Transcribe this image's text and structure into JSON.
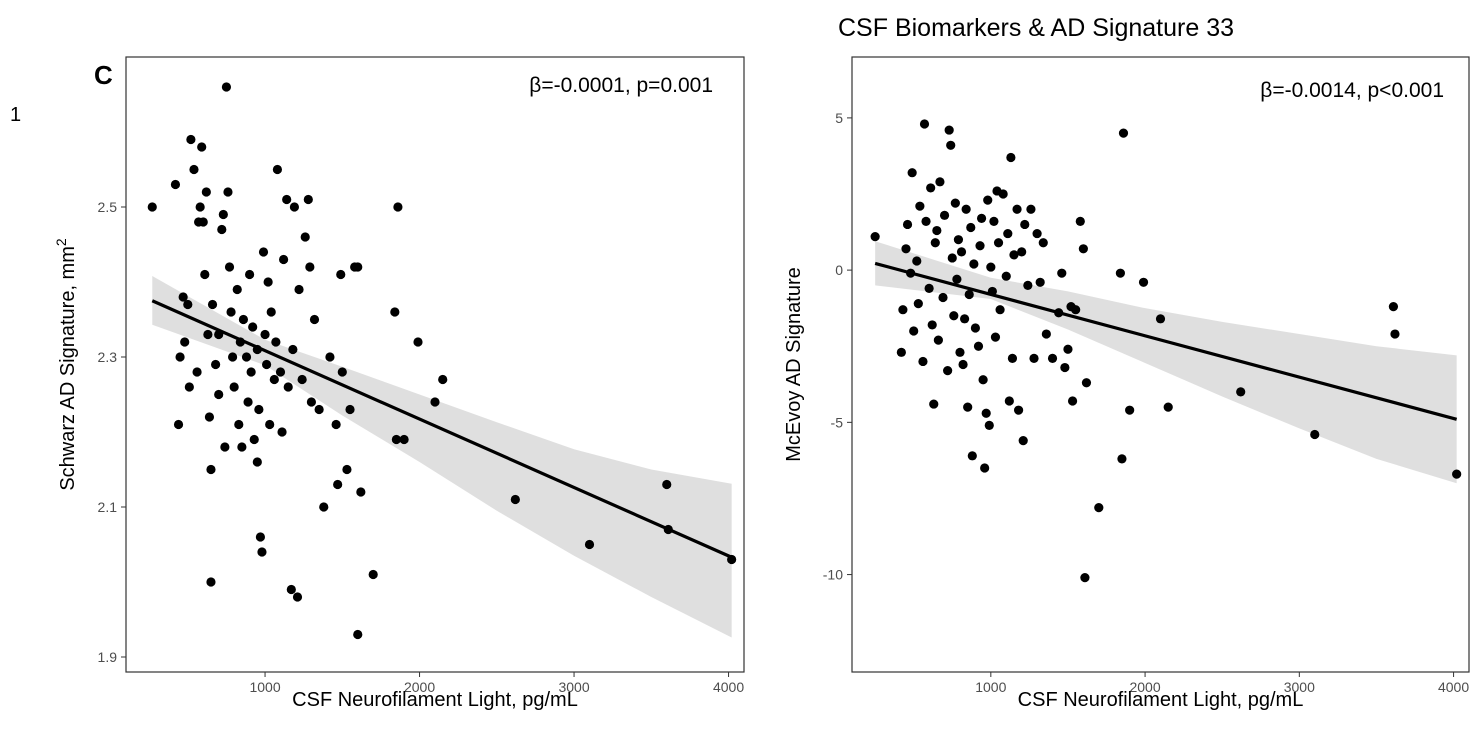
{
  "page": {
    "number": "1",
    "title": "CSF Biomarkers & AD Signature 33"
  },
  "chart_data": [
    {
      "type": "scatter",
      "panel_label": "C",
      "annotation": "β=-0.0001, p=0.001",
      "xlabel": "CSF Neurofilament Light, pg/mL",
      "ylabel": "Schwarz AD Signature, mm",
      "ylabel_sup": "2",
      "xlim": [
        100,
        4100
      ],
      "ylim": [
        1.88,
        2.7
      ],
      "xticks": [
        1000,
        2000,
        3000,
        4000
      ],
      "yticks": [
        1.9,
        2.1,
        2.3,
        2.5
      ],
      "ytick_labels": [
        "1.9",
        "2.1",
        "2.3",
        "2.5"
      ],
      "grid": false,
      "points": [
        [
          270,
          2.5
        ],
        [
          420,
          2.53
        ],
        [
          440,
          2.21
        ],
        [
          450,
          2.3
        ],
        [
          470,
          2.38
        ],
        [
          480,
          2.32
        ],
        [
          500,
          2.37
        ],
        [
          510,
          2.26
        ],
        [
          520,
          2.59
        ],
        [
          540,
          2.55
        ],
        [
          560,
          2.28
        ],
        [
          570,
          2.48
        ],
        [
          580,
          2.5
        ],
        [
          590,
          2.58
        ],
        [
          600,
          2.48
        ],
        [
          610,
          2.41
        ],
        [
          620,
          2.52
        ],
        [
          630,
          2.33
        ],
        [
          640,
          2.22
        ],
        [
          650,
          2.15
        ],
        [
          650,
          2.0
        ],
        [
          660,
          2.37
        ],
        [
          680,
          2.29
        ],
        [
          700,
          2.33
        ],
        [
          700,
          2.25
        ],
        [
          720,
          2.47
        ],
        [
          730,
          2.49
        ],
        [
          740,
          2.18
        ],
        [
          750,
          2.66
        ],
        [
          760,
          2.52
        ],
        [
          770,
          2.42
        ],
        [
          780,
          2.36
        ],
        [
          790,
          2.3
        ],
        [
          800,
          2.26
        ],
        [
          820,
          2.39
        ],
        [
          830,
          2.21
        ],
        [
          840,
          2.32
        ],
        [
          850,
          2.18
        ],
        [
          860,
          2.35
        ],
        [
          880,
          2.3
        ],
        [
          890,
          2.24
        ],
        [
          900,
          2.41
        ],
        [
          910,
          2.28
        ],
        [
          920,
          2.34
        ],
        [
          930,
          2.19
        ],
        [
          950,
          2.31
        ],
        [
          950,
          2.16
        ],
        [
          960,
          2.23
        ],
        [
          970,
          2.06
        ],
        [
          980,
          2.04
        ],
        [
          990,
          2.44
        ],
        [
          1000,
          2.33
        ],
        [
          1010,
          2.29
        ],
        [
          1020,
          2.4
        ],
        [
          1030,
          2.21
        ],
        [
          1040,
          2.36
        ],
        [
          1060,
          2.27
        ],
        [
          1070,
          2.32
        ],
        [
          1080,
          2.55
        ],
        [
          1100,
          2.28
        ],
        [
          1110,
          2.2
        ],
        [
          1120,
          2.43
        ],
        [
          1140,
          2.51
        ],
        [
          1150,
          2.26
        ],
        [
          1170,
          1.99
        ],
        [
          1180,
          2.31
        ],
        [
          1190,
          2.5
        ],
        [
          1210,
          1.98
        ],
        [
          1220,
          2.39
        ],
        [
          1240,
          2.27
        ],
        [
          1260,
          2.46
        ],
        [
          1280,
          2.51
        ],
        [
          1290,
          2.42
        ],
        [
          1300,
          2.24
        ],
        [
          1320,
          2.35
        ],
        [
          1350,
          2.23
        ],
        [
          1380,
          2.1
        ],
        [
          1420,
          2.3
        ],
        [
          1460,
          2.21
        ],
        [
          1470,
          2.13
        ],
        [
          1490,
          2.41
        ],
        [
          1500,
          2.28
        ],
        [
          1530,
          2.15
        ],
        [
          1550,
          2.23
        ],
        [
          1580,
          2.42
        ],
        [
          1600,
          2.42
        ],
        [
          1600,
          1.93
        ],
        [
          1620,
          2.12
        ],
        [
          1700,
          2.01
        ],
        [
          1840,
          2.36
        ],
        [
          1850,
          2.19
        ],
        [
          1860,
          2.5
        ],
        [
          1900,
          2.19
        ],
        [
          1990,
          2.32
        ],
        [
          2100,
          2.24
        ],
        [
          2150,
          2.27
        ],
        [
          2620,
          2.11
        ],
        [
          3100,
          2.05
        ],
        [
          3600,
          2.13
        ],
        [
          3610,
          2.07
        ],
        [
          4020,
          2.03
        ]
      ],
      "fit": {
        "x": [
          270,
          4020
        ],
        "y": [
          2.375,
          2.033
        ]
      },
      "ci_lower": [
        [
          270,
          2.343
        ],
        [
          1000,
          2.289
        ],
        [
          1500,
          2.222
        ],
        [
          2000,
          2.16
        ],
        [
          2500,
          2.095
        ],
        [
          3000,
          2.035
        ],
        [
          3500,
          1.98
        ],
        [
          4020,
          1.926
        ]
      ],
      "ci_upper": [
        [
          270,
          2.408
        ],
        [
          1000,
          2.323
        ],
        [
          1500,
          2.287
        ],
        [
          2000,
          2.25
        ],
        [
          2500,
          2.213
        ],
        [
          3000,
          2.177
        ],
        [
          3500,
          2.15
        ],
        [
          4020,
          2.131
        ]
      ]
    },
    {
      "type": "scatter",
      "annotation": "β=-0.0014, p<0.001",
      "xlabel": "CSF Neurofilament Light, pg/mL",
      "ylabel": "McEvoy AD Signature",
      "xlim": [
        100,
        4100
      ],
      "ylim": [
        -13.2,
        7.0
      ],
      "xticks": [
        1000,
        2000,
        3000,
        4000
      ],
      "yticks": [
        -10,
        -5,
        0,
        5
      ],
      "ytick_labels": [
        "-10",
        "-5",
        "0",
        "5"
      ],
      "grid": false,
      "points": [
        [
          250,
          1.1
        ],
        [
          420,
          -2.7
        ],
        [
          430,
          -1.3
        ],
        [
          450,
          0.7
        ],
        [
          460,
          1.5
        ],
        [
          480,
          -0.1
        ],
        [
          490,
          3.2
        ],
        [
          500,
          -2.0
        ],
        [
          520,
          0.3
        ],
        [
          530,
          -1.1
        ],
        [
          540,
          2.1
        ],
        [
          560,
          -3.0
        ],
        [
          570,
          4.8
        ],
        [
          580,
          1.6
        ],
        [
          600,
          -0.6
        ],
        [
          610,
          2.7
        ],
        [
          620,
          -1.8
        ],
        [
          630,
          -4.4
        ],
        [
          640,
          0.9
        ],
        [
          650,
          1.3
        ],
        [
          660,
          -2.3
        ],
        [
          670,
          2.9
        ],
        [
          690,
          -0.9
        ],
        [
          700,
          1.8
        ],
        [
          720,
          -3.3
        ],
        [
          730,
          4.6
        ],
        [
          740,
          4.1
        ],
        [
          750,
          0.4
        ],
        [
          760,
          -1.5
        ],
        [
          770,
          2.2
        ],
        [
          780,
          -0.3
        ],
        [
          790,
          1.0
        ],
        [
          800,
          -2.7
        ],
        [
          810,
          0.6
        ],
        [
          820,
          -3.1
        ],
        [
          830,
          -1.6
        ],
        [
          840,
          2.0
        ],
        [
          850,
          -4.5
        ],
        [
          860,
          -0.8
        ],
        [
          870,
          1.4
        ],
        [
          880,
          -6.1
        ],
        [
          890,
          0.2
        ],
        [
          900,
          -1.9
        ],
        [
          920,
          -2.5
        ],
        [
          930,
          0.8
        ],
        [
          940,
          1.7
        ],
        [
          950,
          -3.6
        ],
        [
          960,
          -6.5
        ],
        [
          970,
          -4.7
        ],
        [
          980,
          2.3
        ],
        [
          990,
          -5.1
        ],
        [
          1000,
          0.1
        ],
        [
          1010,
          -0.7
        ],
        [
          1020,
          1.6
        ],
        [
          1030,
          -2.2
        ],
        [
          1040,
          2.6
        ],
        [
          1050,
          0.9
        ],
        [
          1060,
          -1.3
        ],
        [
          1080,
          2.5
        ],
        [
          1100,
          -0.2
        ],
        [
          1110,
          1.2
        ],
        [
          1120,
          -4.3
        ],
        [
          1130,
          3.7
        ],
        [
          1140,
          -2.9
        ],
        [
          1150,
          0.5
        ],
        [
          1170,
          2.0
        ],
        [
          1180,
          -4.6
        ],
        [
          1200,
          0.6
        ],
        [
          1210,
          -5.6
        ],
        [
          1220,
          1.5
        ],
        [
          1240,
          -0.5
        ],
        [
          1260,
          2.0
        ],
        [
          1280,
          -2.9
        ],
        [
          1300,
          1.2
        ],
        [
          1320,
          -0.4
        ],
        [
          1340,
          0.9
        ],
        [
          1360,
          -2.1
        ],
        [
          1400,
          -2.9
        ],
        [
          1440,
          -1.4
        ],
        [
          1460,
          -0.1
        ],
        [
          1480,
          -3.2
        ],
        [
          1500,
          -2.6
        ],
        [
          1520,
          -1.2
        ],
        [
          1530,
          -4.3
        ],
        [
          1550,
          -1.3
        ],
        [
          1580,
          1.6
        ],
        [
          1600,
          0.7
        ],
        [
          1610,
          -10.1
        ],
        [
          1620,
          -3.7
        ],
        [
          1700,
          -7.8
        ],
        [
          1840,
          -0.1
        ],
        [
          1850,
          -6.2
        ],
        [
          1860,
          4.5
        ],
        [
          1900,
          -4.6
        ],
        [
          1990,
          -0.4
        ],
        [
          2100,
          -1.6
        ],
        [
          2150,
          -4.5
        ],
        [
          2620,
          -4.0
        ],
        [
          3100,
          -5.4
        ],
        [
          3610,
          -1.2
        ],
        [
          3620,
          -2.1
        ],
        [
          4020,
          -6.7
        ]
      ],
      "fit": {
        "x": [
          250,
          4020
        ],
        "y": [
          0.22,
          -4.9
        ]
      },
      "ci_lower": [
        [
          250,
          -0.5
        ],
        [
          1000,
          -0.95
        ],
        [
          1500,
          -1.95
        ],
        [
          2000,
          -3.05
        ],
        [
          2500,
          -4.15
        ],
        [
          3000,
          -5.2
        ],
        [
          3500,
          -6.2
        ],
        [
          4020,
          -7.0
        ]
      ],
      "ci_upper": [
        [
          250,
          0.95
        ],
        [
          1000,
          -0.25
        ],
        [
          1500,
          -0.7
        ],
        [
          2000,
          -1.25
        ],
        [
          2500,
          -1.7
        ],
        [
          3000,
          -2.1
        ],
        [
          3500,
          -2.5
        ],
        [
          4020,
          -2.8
        ]
      ]
    }
  ]
}
